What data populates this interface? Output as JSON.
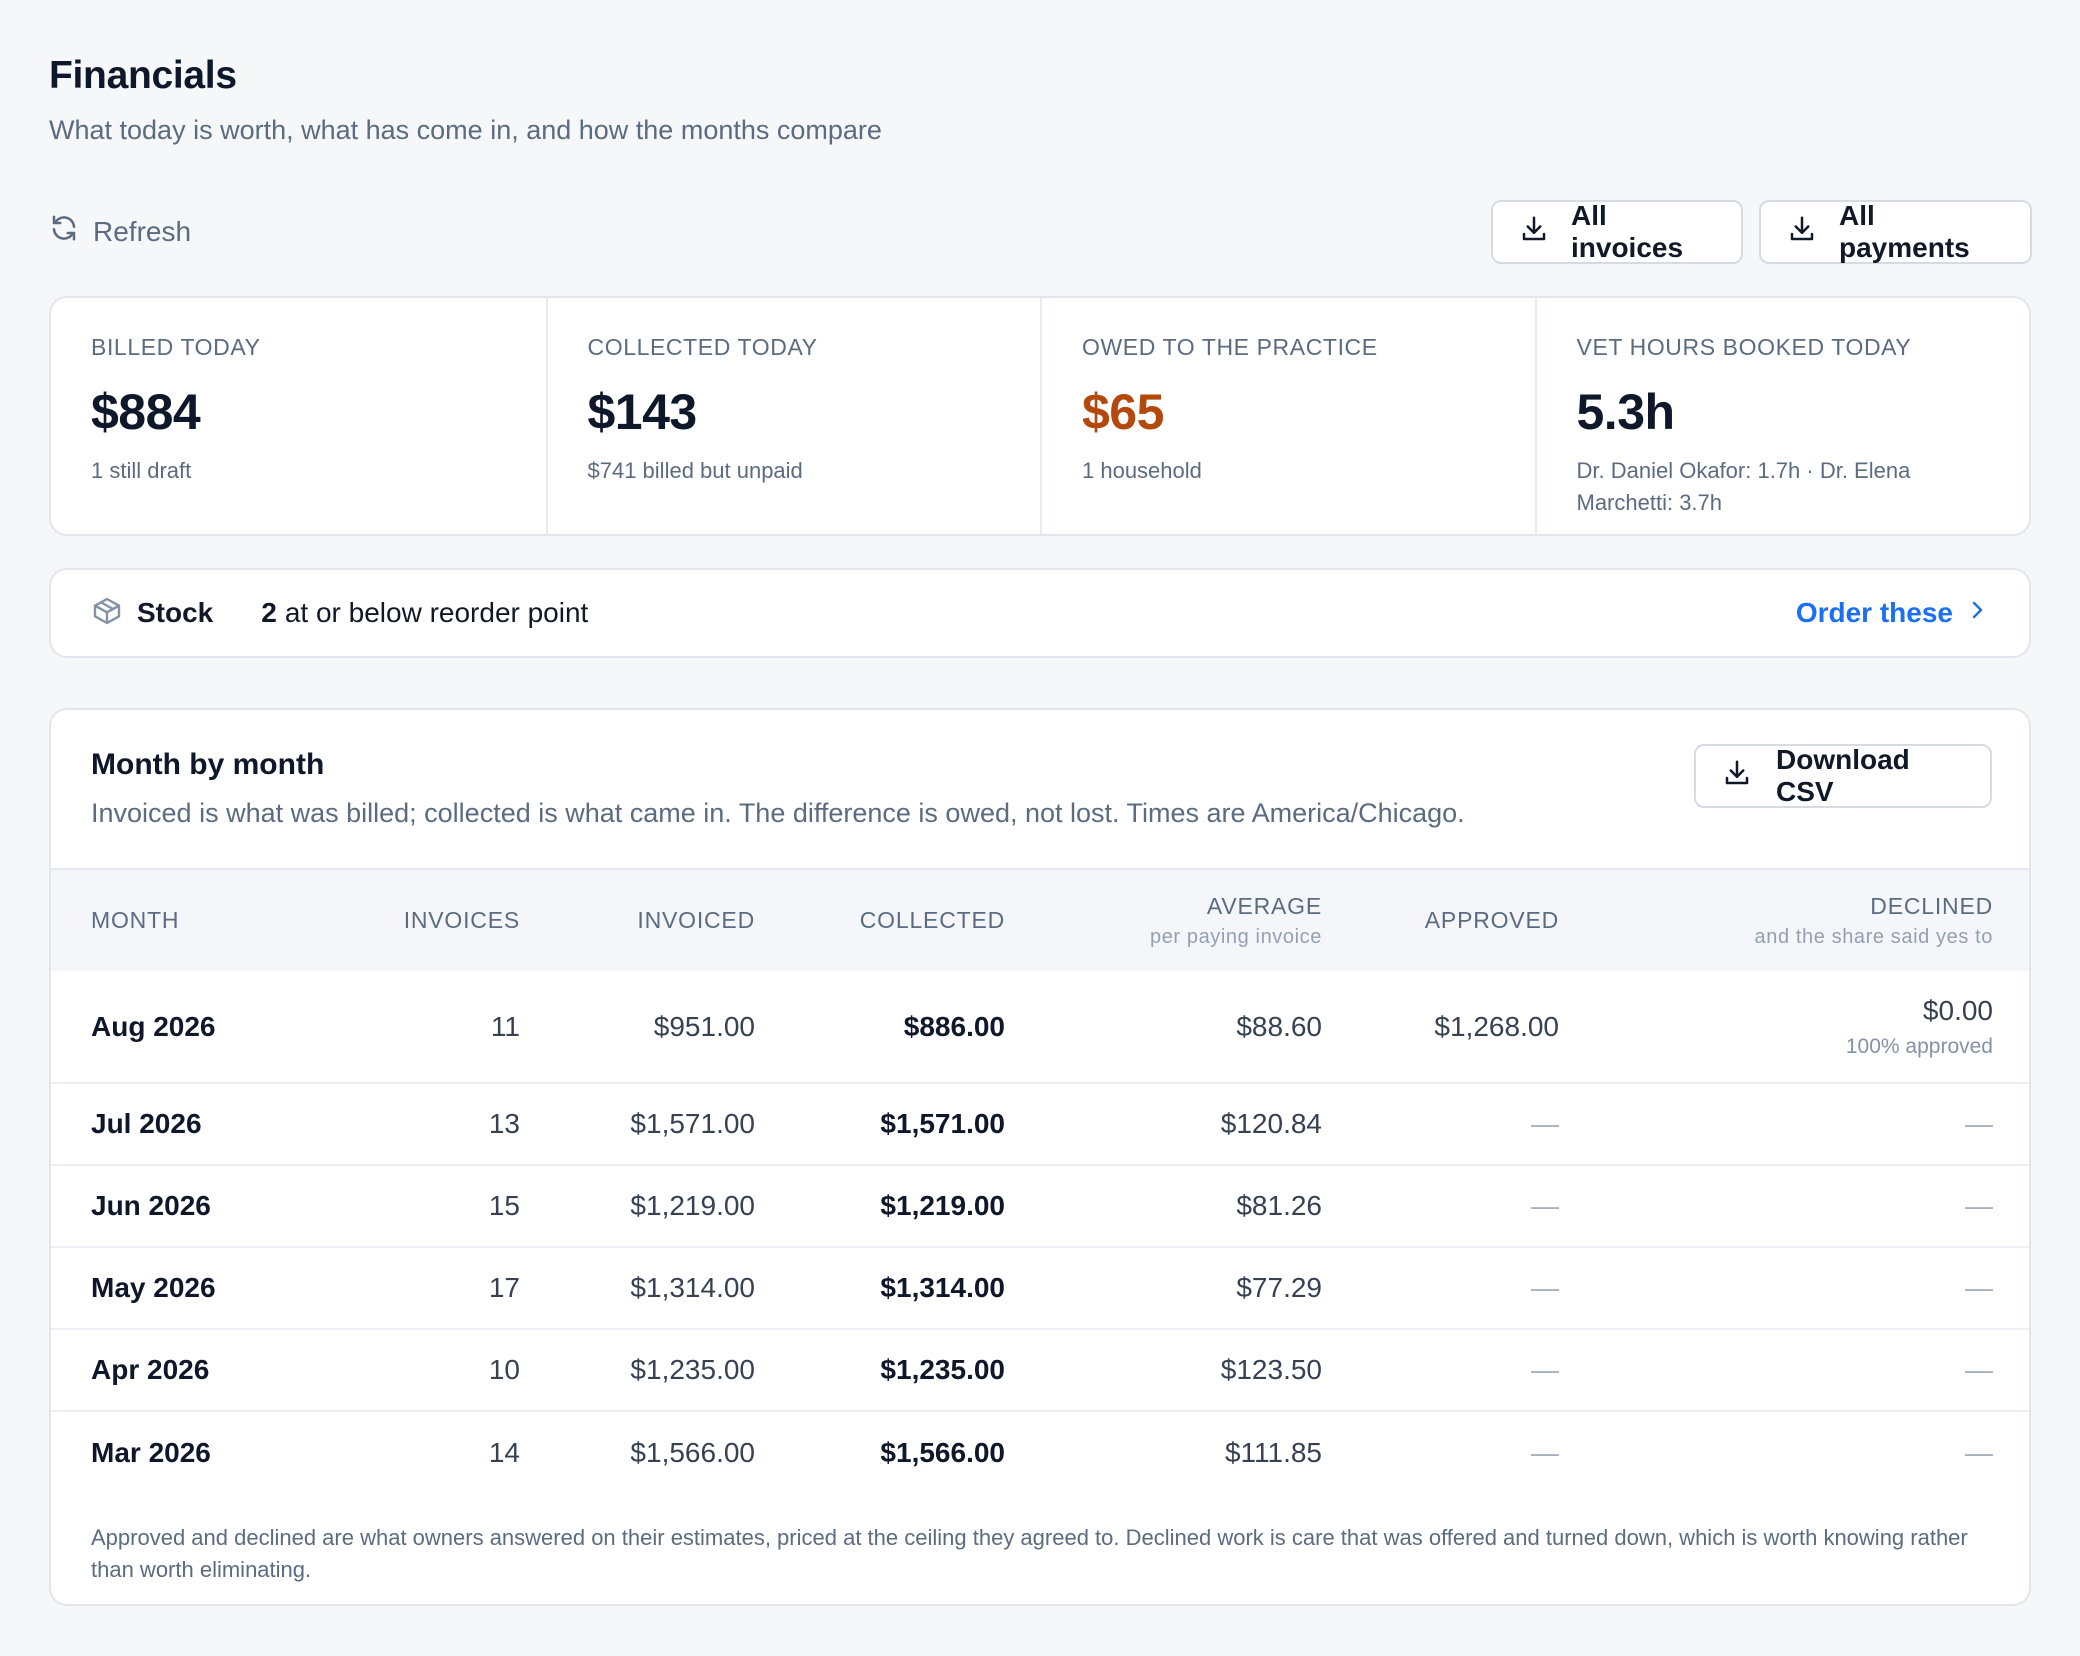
{
  "header": {
    "title": "Financials",
    "subtitle": "What today is worth, what has come in, and how the months compare"
  },
  "toolbar": {
    "refresh_label": "Refresh",
    "invoices_label": "All invoices",
    "payments_label": "All payments"
  },
  "stats": [
    {
      "label": "BILLED TODAY",
      "value": "$884",
      "note": "1 still draft"
    },
    {
      "label": "COLLECTED TODAY",
      "value": "$143",
      "note": "$741 billed but unpaid"
    },
    {
      "label": "OWED TO THE PRACTICE",
      "value": "$65",
      "note": "1 household",
      "value_color": "#b4490d"
    },
    {
      "label": "VET HOURS BOOKED TODAY",
      "value": "5.3h",
      "note": "Dr. Daniel Okafor: 1.7h · Dr. Elena Marchetti: 3.7h"
    }
  ],
  "stock": {
    "label": "Stock",
    "count": "2",
    "text": "at or below reorder point",
    "action_label": "Order these"
  },
  "monthly": {
    "title": "Month by month",
    "subtitle": "Invoiced is what was billed; collected is what came in. The difference is owed, not lost. Times are America/Chicago.",
    "download_label": "Download CSV",
    "columns": {
      "month": "MONTH",
      "invoices": "INVOICES",
      "invoiced": "INVOICED",
      "collected": "COLLECTED",
      "average": "AVERAGE",
      "average_sub": "per paying invoice",
      "approved": "APPROVED",
      "declined": "DECLINED",
      "declined_sub": "and the share said yes to"
    },
    "rows": [
      {
        "month": "Aug 2026",
        "invoices": "11",
        "invoiced": "$951.00",
        "collected": "$886.00",
        "average": "$88.60",
        "approved": "$1,268.00",
        "declined": "$0.00",
        "declined_share": "100% approved"
      },
      {
        "month": "Jul 2026",
        "invoices": "13",
        "invoiced": "$1,571.00",
        "collected": "$1,571.00",
        "average": "$120.84",
        "approved": "—",
        "declined": "—"
      },
      {
        "month": "Jun 2026",
        "invoices": "15",
        "invoiced": "$1,219.00",
        "collected": "$1,219.00",
        "average": "$81.26",
        "approved": "—",
        "declined": "—"
      },
      {
        "month": "May 2026",
        "invoices": "17",
        "invoiced": "$1,314.00",
        "collected": "$1,314.00",
        "average": "$77.29",
        "approved": "—",
        "declined": "—"
      },
      {
        "month": "Apr 2026",
        "invoices": "10",
        "invoiced": "$1,235.00",
        "collected": "$1,235.00",
        "average": "$123.50",
        "approved": "—",
        "declined": "—"
      },
      {
        "month": "Mar 2026",
        "invoices": "14",
        "invoiced": "$1,566.00",
        "collected": "$1,566.00",
        "average": "$111.85",
        "approved": "—",
        "declined": "—"
      }
    ],
    "footnote": "Approved and declined are what owners answered on their estimates, priced at the ceiling they agreed to. Declined work is care that was offered and turned down, which is worth knowing rather than worth eliminating."
  },
  "icons": {
    "refresh": "refresh-icon",
    "download": "download-icon",
    "stock": "package-icon",
    "chevron": "chevron-right-icon"
  },
  "colors": {
    "accent": "#1a6ff2",
    "warning": "#b4490d"
  }
}
